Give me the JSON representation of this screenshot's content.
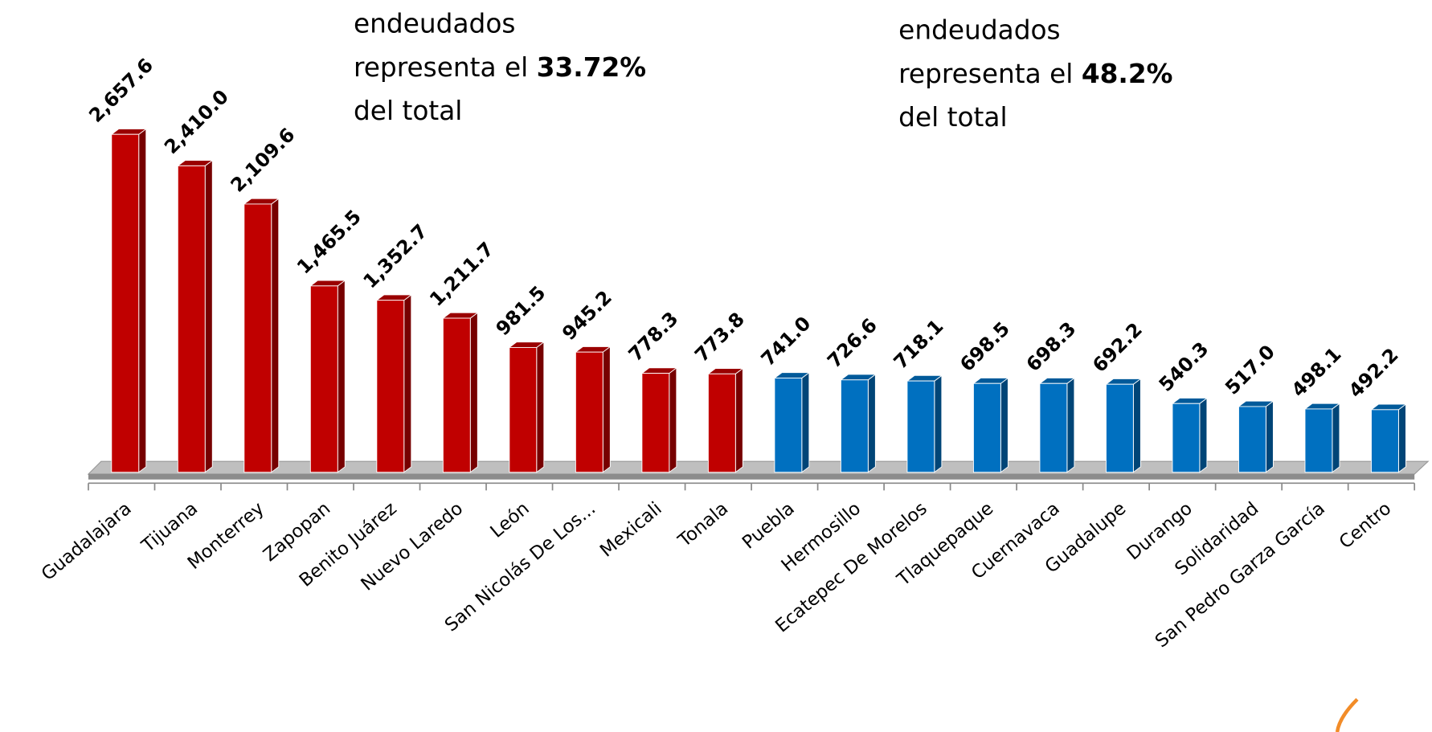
{
  "chart_data": {
    "type": "bar3d",
    "annotations": [
      {
        "lines": [
          [
            {
              "text": "endeudados"
            }
          ],
          [
            {
              "text": "representa  el "
            },
            {
              "text": "33.72%",
              "bold": true
            }
          ],
          [
            {
              "text": "del total"
            }
          ]
        ]
      },
      {
        "lines": [
          [
            {
              "text": "endeudados"
            }
          ],
          [
            {
              "text": "representa  el "
            },
            {
              "text": "48.2%",
              "bold": true
            }
          ],
          [
            {
              "text": "del total"
            }
          ]
        ]
      }
    ],
    "categories": [
      "Guadalajara",
      "Tijuana",
      "Monterrey",
      "Zapopan",
      "Benito Juárez",
      "Nuevo Laredo",
      "León",
      "San Nicolás De Los...",
      "Mexicali",
      "Tonala",
      "Puebla",
      "Hermosillo",
      "Ecatepec De Morelos",
      "Tlaquepaque",
      "Cuernavaca",
      "Guadalupe",
      "Durango",
      "Solidaridad",
      "San Pedro Garza García",
      "Centro"
    ],
    "values": [
      2657.6,
      2410.0,
      2109.6,
      1465.5,
      1352.7,
      1211.7,
      981.5,
      945.2,
      778.3,
      773.8,
      741.0,
      726.6,
      718.1,
      698.5,
      698.3,
      692.2,
      540.3,
      517.0,
      498.1,
      492.2
    ],
    "value_labels": [
      "2,657.6",
      "2,410.0",
      "2,109.6",
      "1,465.5",
      "1,352.7",
      "1,211.7",
      "981.5",
      "945.2",
      "778.3",
      "773.8",
      "741.0",
      "726.6",
      "718.1",
      "698.5",
      "698.3",
      "692.2",
      "540.3",
      "517.0",
      "498.1",
      "492.2"
    ],
    "colors": [
      "#c00000",
      "#c00000",
      "#c00000",
      "#c00000",
      "#c00000",
      "#c00000",
      "#c00000",
      "#c00000",
      "#c00000",
      "#c00000",
      "#0070c0",
      "#0070c0",
      "#0070c0",
      "#0070c0",
      "#0070c0",
      "#0070c0",
      "#0070c0",
      "#0070c0",
      "#0070c0",
      "#0070c0"
    ]
  }
}
